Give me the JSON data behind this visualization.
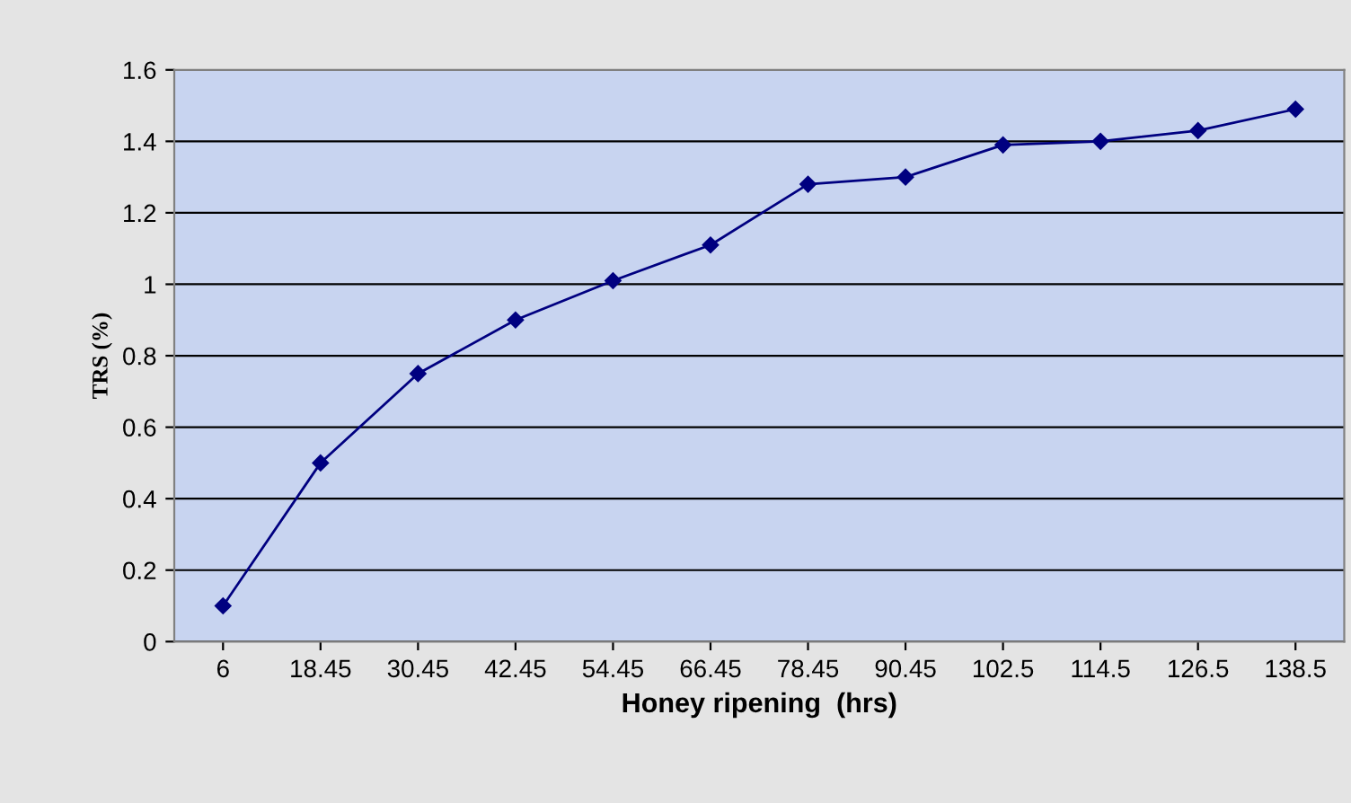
{
  "chart_data": {
    "type": "line",
    "xlabel": "Honey ripening  (hrs)",
    "ylabel": "TRS (%)",
    "categories": [
      "6",
      "18.45",
      "30.45",
      "42.45",
      "54.45",
      "66.45",
      "78.45",
      "90.45",
      "102.5",
      "114.5",
      "126.5",
      "138.5"
    ],
    "series": [
      {
        "color": "#000080",
        "values": [
          0.1,
          0.5,
          0.75,
          0.9,
          1.01,
          1.11,
          1.28,
          1.3,
          1.39,
          1.4,
          1.43,
          1.49
        ]
      }
    ],
    "ylim": [
      0,
      1.6
    ],
    "yticks": [
      0,
      {
        "value": 0.2,
        "label": "0.2"
      },
      {
        "value": 0.4,
        "label": "0.4"
      },
      {
        "value": 0.6,
        "label": "0.6"
      },
      {
        "value": 0.8,
        "label": "0.8"
      },
      1,
      {
        "value": 1.2,
        "label": "1.2"
      },
      {
        "value": 1.4,
        "label": "1.4"
      },
      {
        "value": 1.6,
        "label": "1.6"
      }
    ],
    "grid": "y",
    "marker": "diamond",
    "line_style": "solid"
  }
}
